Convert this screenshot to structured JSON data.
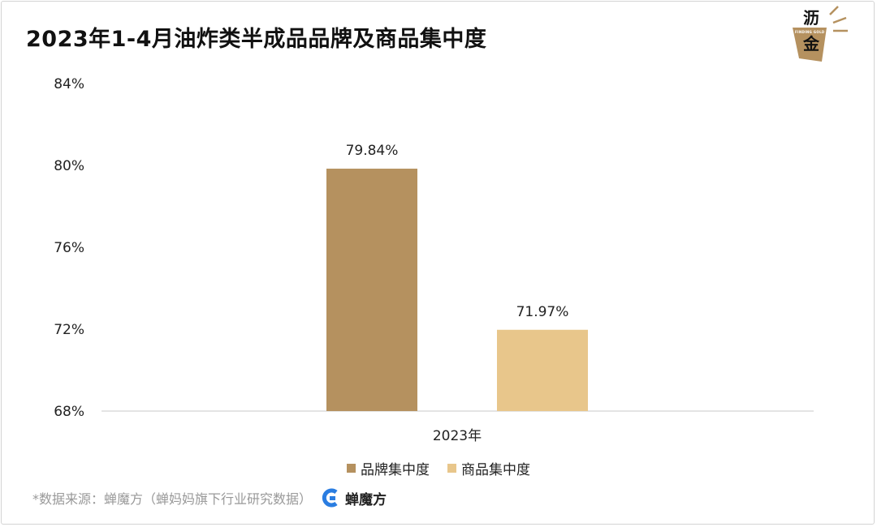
{
  "title": "2023年1-4月油炸类半成品品牌及商品集中度",
  "logo": {
    "line1": "沥",
    "line2": "金",
    "sub": "FINDING GOLD"
  },
  "colors": {
    "brand": "#b5915f",
    "goods": "#e8c68b",
    "axis": "#c8c8c8"
  },
  "chart_data": {
    "type": "bar",
    "categories": [
      "2023年"
    ],
    "series": [
      {
        "name": "品牌集中度",
        "values": [
          79.84
        ],
        "label": "79.84%",
        "color": "#b5915f"
      },
      {
        "name": "商品集中度",
        "values": [
          71.97
        ],
        "label": "71.97%",
        "color": "#e8c68b"
      }
    ],
    "ylim": [
      68,
      84
    ],
    "yticks": [
      84,
      80,
      76,
      72,
      68
    ],
    "ytick_labels": [
      "84%",
      "80%",
      "76%",
      "72%",
      "68%"
    ],
    "legend_position": "bottom",
    "grid": false
  },
  "footer": {
    "source": "*数据来源：蝉魔方（蝉妈妈旗下行业研究数据）",
    "brand": "蝉魔方"
  }
}
